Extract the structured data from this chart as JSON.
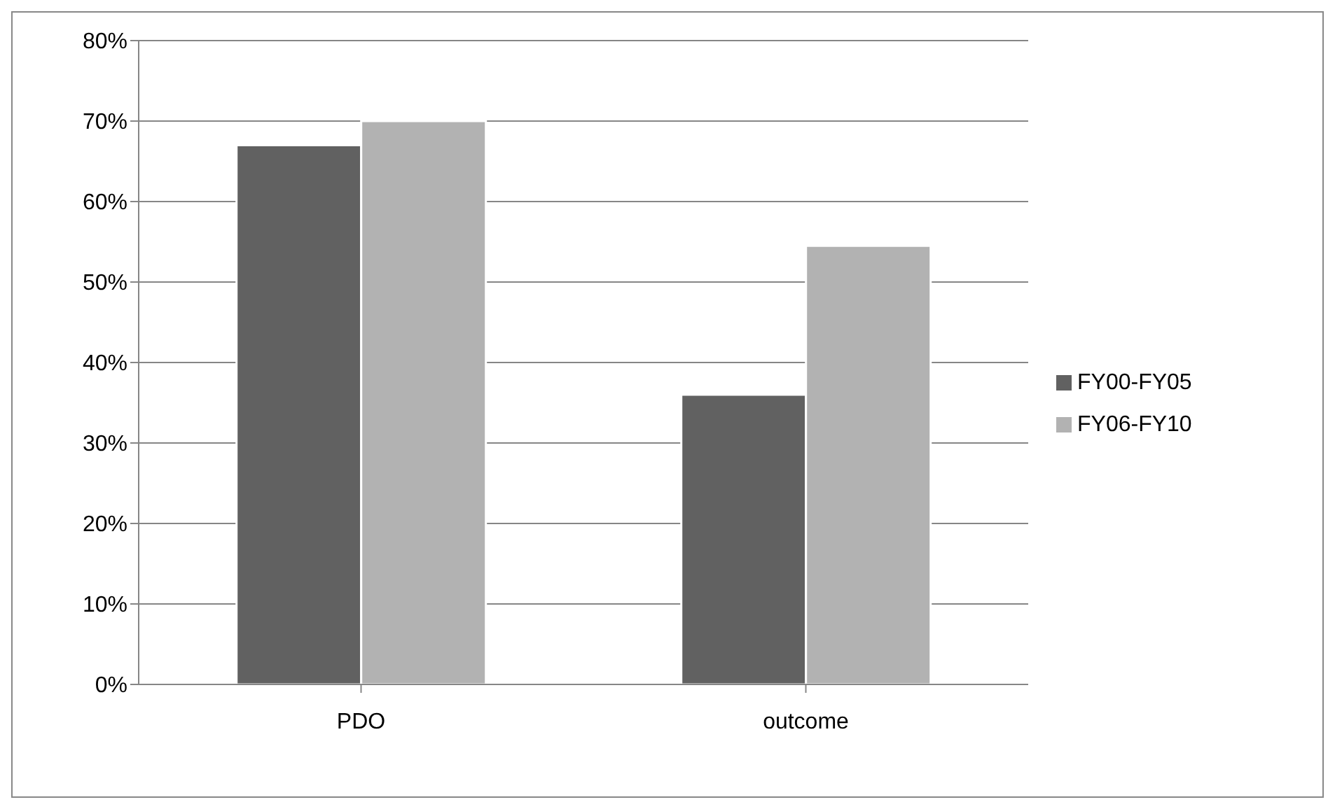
{
  "chart_data": {
    "type": "bar",
    "categories": [
      "PDO",
      "outcome"
    ],
    "series": [
      {
        "name": "FY00-FY05",
        "color": "#616161",
        "values": [
          67,
          36
        ]
      },
      {
        "name": "FY06-FY10",
        "color": "#b2b2b2",
        "values": [
          70,
          54.5
        ]
      }
    ],
    "ylim": [
      0,
      80
    ],
    "yticks": [
      {
        "value": 0,
        "label": "0%"
      },
      {
        "value": 10,
        "label": "10%"
      },
      {
        "value": 20,
        "label": "20%"
      },
      {
        "value": 30,
        "label": "30%"
      },
      {
        "value": 40,
        "label": "40%"
      },
      {
        "value": 50,
        "label": "50%"
      },
      {
        "value": 60,
        "label": "60%"
      },
      {
        "value": 70,
        "label": "70%"
      },
      {
        "value": 80,
        "label": "80%"
      }
    ],
    "grid": "y",
    "legend": "right"
  }
}
